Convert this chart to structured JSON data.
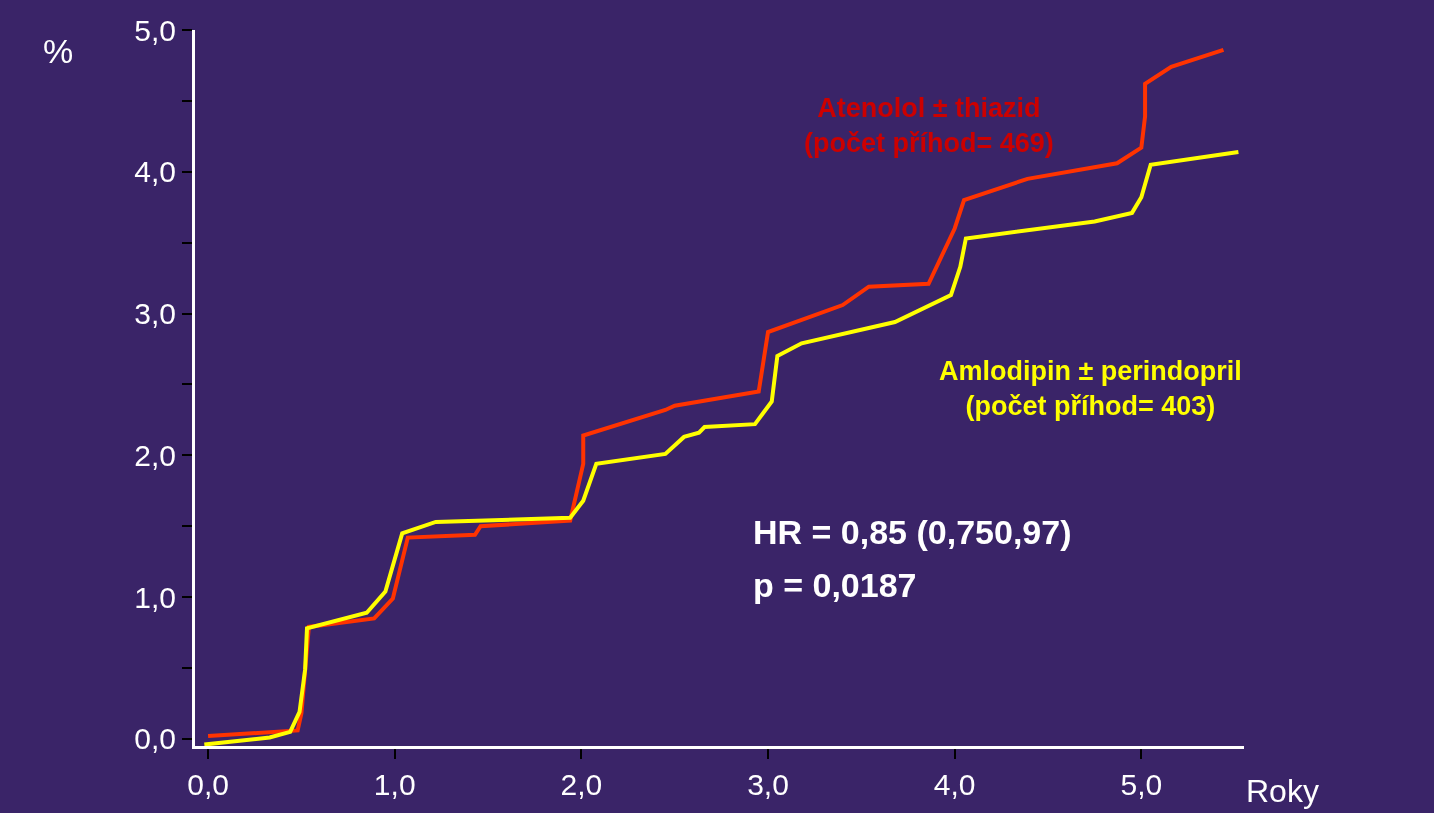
{
  "chart_data": {
    "type": "line",
    "xlabel": "Roky",
    "ylabel": "%",
    "xlim": [
      -0.07,
      5.55
    ],
    "ylim": [
      -0.05,
      5.0
    ],
    "xticks": [
      {
        "value": 0,
        "label": "0,0"
      },
      {
        "value": 1,
        "label": "1,0"
      },
      {
        "value": 2,
        "label": "2,0"
      },
      {
        "value": 3,
        "label": "3,0"
      },
      {
        "value": 4,
        "label": "4,0"
      },
      {
        "value": 5,
        "label": "5,0"
      }
    ],
    "yticks": [
      {
        "value": 0,
        "label": "0,0"
      },
      {
        "value": 0.5,
        "label": null
      },
      {
        "value": 1,
        "label": "1,0"
      },
      {
        "value": 1.5,
        "label": null
      },
      {
        "value": 2,
        "label": "2,0"
      },
      {
        "value": 2.5,
        "label": null
      },
      {
        "value": 3,
        "label": "3,0"
      },
      {
        "value": 3.5,
        "label": null
      },
      {
        "value": 4,
        "label": "4,0"
      },
      {
        "value": 4.5,
        "label": null
      },
      {
        "value": 5,
        "label": "5,0"
      }
    ],
    "grid": false,
    "legend": false,
    "marker": "none",
    "line_style": "solid",
    "series": [
      {
        "name": "Atenolol ± thiazid\n(počet příhod= 469)",
        "color": "#ff3300",
        "x": [
          0,
          0.48,
          0.5,
          0.54,
          0.89,
          0.99,
          1.07,
          1.43,
          1.46,
          1.94,
          2.01,
          2.01,
          2.45,
          2.5,
          2.95,
          3.0,
          3.4,
          3.54,
          3.86,
          4.0,
          4.05,
          4.39,
          4.87,
          5.0,
          5.02,
          5.02,
          5.16,
          5.44
        ],
        "values": [
          0.02,
          0.06,
          0.18,
          0.79,
          0.85,
          0.99,
          1.42,
          1.44,
          1.5,
          1.54,
          1.94,
          2.14,
          2.32,
          2.35,
          2.45,
          2.87,
          3.06,
          3.19,
          3.21,
          3.6,
          3.8,
          3.95,
          4.06,
          4.17,
          4.39,
          4.62,
          4.74,
          4.86
        ]
      },
      {
        "name": "Amlodipin ± perindopril\n(počet příhod= 403)",
        "color": "#ffff00",
        "x": [
          -0.02,
          0.33,
          0.44,
          0.49,
          0.52,
          0.53,
          0.85,
          0.95,
          1.04,
          1.22,
          1.94,
          2.01,
          2.08,
          2.45,
          2.55,
          2.63,
          2.66,
          2.93,
          3.02,
          3.05,
          3.18,
          3.68,
          3.98,
          4.03,
          4.06,
          4.75,
          4.95,
          5.0,
          5.05,
          5.52
        ],
        "values": [
          -0.04,
          0.01,
          0.05,
          0.19,
          0.49,
          0.78,
          0.89,
          1.04,
          1.45,
          1.53,
          1.56,
          1.68,
          1.94,
          2.01,
          2.13,
          2.16,
          2.2,
          2.22,
          2.38,
          2.7,
          2.79,
          2.94,
          3.13,
          3.33,
          3.53,
          3.65,
          3.71,
          3.82,
          4.05,
          4.14
        ]
      }
    ],
    "annotations": [
      "HR = 0,85 (0,750,97)",
      "p = 0,0187"
    ]
  }
}
